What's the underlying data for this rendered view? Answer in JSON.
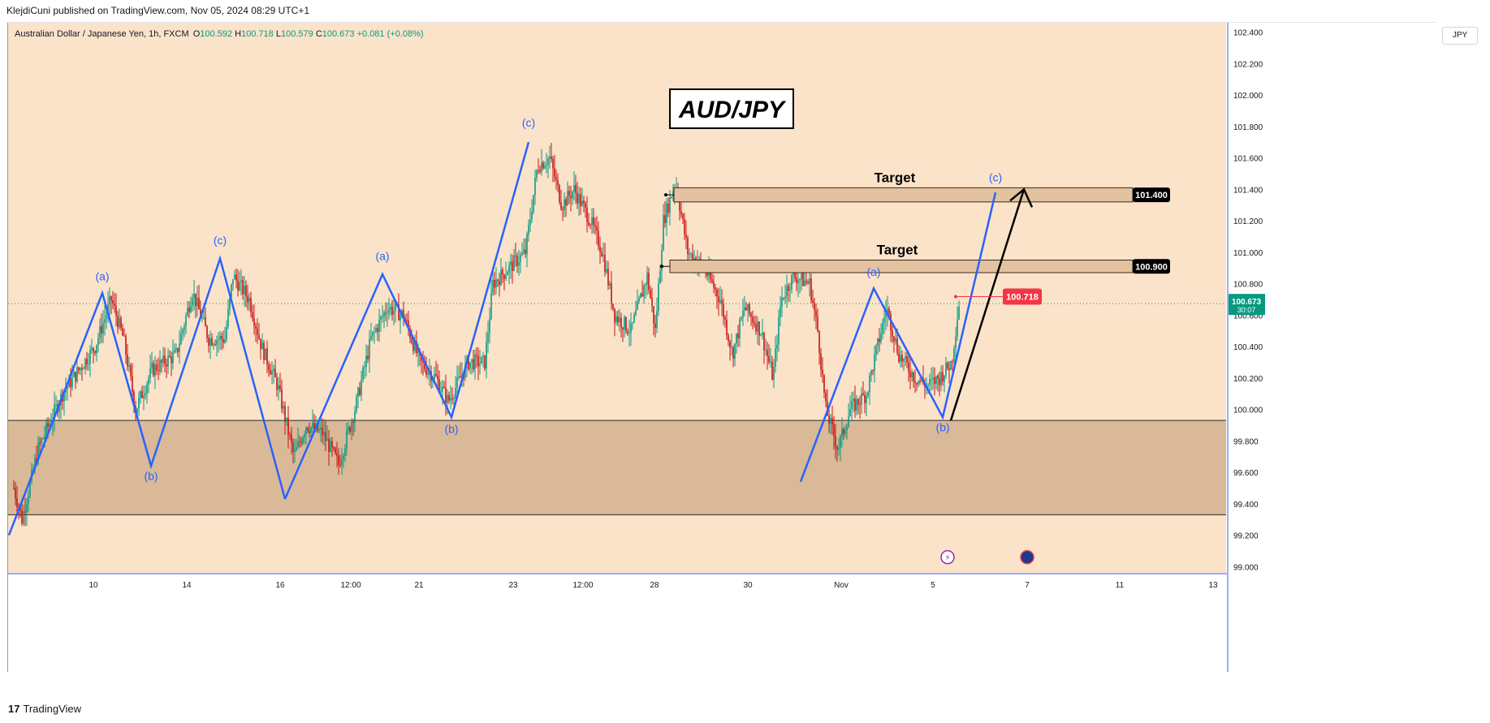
{
  "header": {
    "publish_line": "KlejdiCuni published on TradingView.com, Nov 05, 2024 08:29 UTC+1"
  },
  "symbol_info": {
    "name": "Australian Dollar / Japanese Yen, 1h, FXCM",
    "open_label": "O",
    "open": "100.592",
    "high_label": "H",
    "high": "100.718",
    "low_label": "L",
    "low": "100.579",
    "close_label": "C",
    "close": "100.673",
    "change": "+0.081 (+0.08%)"
  },
  "currency_button": "JPY",
  "footer": {
    "logo_text": "TradingView",
    "logo_mark": "17"
  },
  "colors": {
    "background": "#fbe3c9",
    "zone_fill": "#d9b998",
    "target_fill": "#e3c2a0",
    "wave_line": "#2962ff",
    "arrow": "#000000",
    "candle_up": "#089981",
    "candle_down": "#c71313",
    "price_red": "#f23645",
    "current_price_bg": "#089981"
  },
  "chart_data": {
    "type": "candlestick",
    "title": "AUD/JPY",
    "ylim": [
      98.96,
      102.46
    ],
    "y_ticks": [
      "102.400",
      "102.200",
      "102.000",
      "101.800",
      "101.600",
      "101.400",
      "101.200",
      "101.000",
      "100.800",
      "100.600",
      "100.400",
      "100.200",
      "100.000",
      "99.800",
      "99.600",
      "99.400",
      "99.200",
      "99.000"
    ],
    "x_ticks": [
      "10",
      "14",
      "16",
      "12:00",
      "21",
      "23",
      "12:00",
      "28",
      "30",
      "Nov",
      "5",
      "7",
      "11",
      "13"
    ],
    "price_series": {
      "start_price": 99.5,
      "points": [
        [
          0,
          99.5
        ],
        [
          10,
          99.3
        ],
        [
          30,
          99.75
        ],
        [
          60,
          100.1
        ],
        [
          100,
          100.4
        ],
        [
          120,
          100.7
        ],
        [
          135,
          100.45
        ],
        [
          150,
          100.0
        ],
        [
          170,
          100.25
        ],
        [
          200,
          100.35
        ],
        [
          220,
          100.75
        ],
        [
          240,
          100.45
        ],
        [
          260,
          100.45
        ],
        [
          270,
          100.85
        ],
        [
          290,
          100.7
        ],
        [
          305,
          100.4
        ],
        [
          325,
          100.15
        ],
        [
          345,
          99.7
        ],
        [
          360,
          99.9
        ],
        [
          380,
          99.85
        ],
        [
          400,
          99.65
        ],
        [
          420,
          100.0
        ],
        [
          440,
          100.45
        ],
        [
          460,
          100.65
        ],
        [
          480,
          100.6
        ],
        [
          500,
          100.3
        ],
        [
          520,
          100.2
        ],
        [
          535,
          100.05
        ],
        [
          560,
          100.3
        ],
        [
          580,
          100.3
        ],
        [
          590,
          100.8
        ],
        [
          610,
          100.9
        ],
        [
          630,
          101.0
        ],
        [
          645,
          101.55
        ],
        [
          660,
          101.6
        ],
        [
          675,
          101.3
        ],
        [
          690,
          101.4
        ],
        [
          710,
          101.2
        ],
        [
          725,
          101.0
        ],
        [
          740,
          100.6
        ],
        [
          760,
          100.5
        ],
        [
          780,
          100.85
        ],
        [
          790,
          100.5
        ],
        [
          800,
          101.2
        ],
        [
          815,
          101.45
        ],
        [
          830,
          101.0
        ],
        [
          850,
          100.9
        ],
        [
          870,
          100.7
        ],
        [
          885,
          100.35
        ],
        [
          900,
          100.65
        ],
        [
          920,
          100.5
        ],
        [
          935,
          100.2
        ],
        [
          945,
          100.7
        ],
        [
          960,
          100.85
        ],
        [
          980,
          100.8
        ],
        [
          990,
          100.5
        ],
        [
          1000,
          100.0
        ],
        [
          1015,
          99.75
        ],
        [
          1030,
          100.0
        ],
        [
          1050,
          100.1
        ],
        [
          1075,
          100.65
        ],
        [
          1090,
          100.35
        ],
        [
          1110,
          100.2
        ],
        [
          1125,
          100.15
        ],
        [
          1140,
          100.2
        ],
        [
          1155,
          100.3
        ],
        [
          1165,
          100.718
        ]
      ]
    },
    "support_zone": {
      "top": 99.93,
      "bottom": 99.33
    },
    "targets": [
      {
        "label": "Target",
        "price_label": "101.400",
        "top": 101.41,
        "bottom": 101.32
      },
      {
        "label": "Target",
        "price_label": "100.900",
        "top": 100.95,
        "bottom": 100.87
      }
    ],
    "wave_segments": [
      {
        "points": [
          [
            0,
            99.2
          ],
          [
            115,
            100.74
          ],
          [
            175,
            99.64
          ],
          [
            260,
            100.96
          ],
          [
            340,
            99.43
          ]
        ]
      },
      {
        "points": [
          [
            340,
            99.43
          ],
          [
            460,
            100.86
          ],
          [
            545,
            99.95
          ],
          [
            640,
            101.7
          ]
        ]
      },
      {
        "points": [
          [
            975,
            99.54
          ],
          [
            1065,
            100.77
          ],
          [
            1150,
            99.95
          ],
          [
            1215,
            101.38
          ]
        ]
      }
    ],
    "wave_labels": [
      {
        "text": "(a)",
        "x": 115,
        "y": 100.82
      },
      {
        "text": "(b)",
        "x": 175,
        "y": 99.55
      },
      {
        "text": "(c)",
        "x": 260,
        "y": 101.05
      },
      {
        "text": "(a)",
        "x": 460,
        "y": 100.95
      },
      {
        "text": "(b)",
        "x": 545,
        "y": 99.85
      },
      {
        "text": "(c)",
        "x": 640,
        "y": 101.8
      },
      {
        "text": "(a)",
        "x": 1065,
        "y": 100.85
      },
      {
        "text": "(b)",
        "x": 1150,
        "y": 99.86
      },
      {
        "text": "(c)",
        "x": 1215,
        "y": 101.45
      }
    ],
    "arrow": {
      "from": [
        1160,
        99.93
      ],
      "to": [
        1250,
        101.4
      ]
    },
    "last_price_marker": {
      "label": "100.718",
      "price": 100.718
    },
    "current_price": {
      "label": "100.673",
      "countdown": "30:07",
      "price": 100.673
    },
    "event_icons": [
      "lightning-icon",
      "australia-flag-icon"
    ]
  }
}
